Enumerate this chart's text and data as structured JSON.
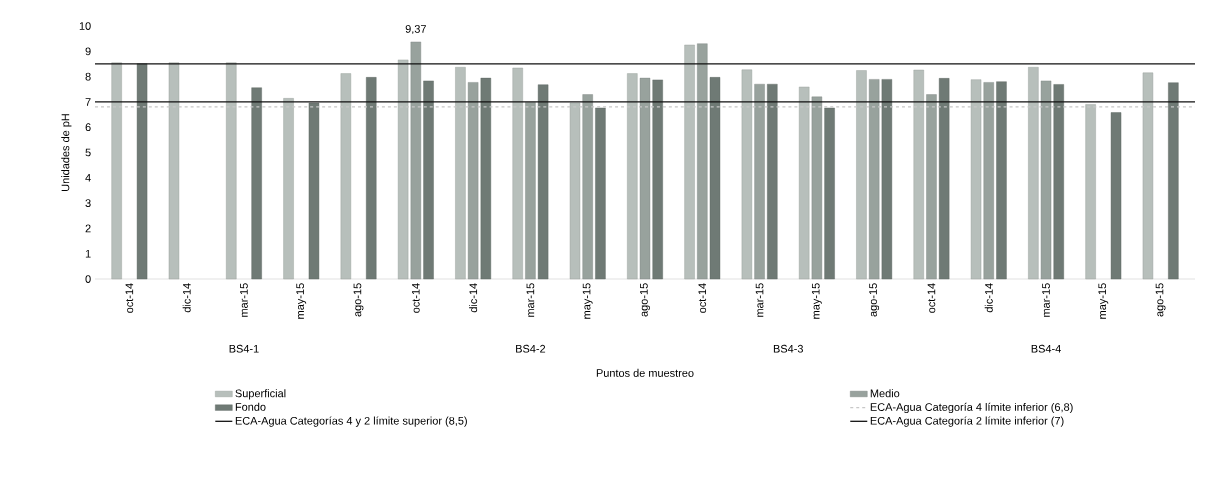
{
  "chart_data": {
    "type": "bar",
    "xlabel": "Puntos de muestreo",
    "ylabel": "Unidades de pH",
    "categories": [
      "oct-14",
      "dic-14",
      "mar-15",
      "may-15",
      "ago-15",
      "oct-14",
      "dic-14",
      "mar-15",
      "may-15",
      "ago-15",
      "oct-14",
      "mar-15",
      "may-15",
      "ago-15",
      "oct-14",
      "dic-14",
      "mar-15",
      "may-15",
      "ago-15"
    ],
    "series": [
      {
        "name": "Superficial",
        "color": "#b7bfbb",
        "values": [
          8.55,
          8.55,
          8.55,
          7.14,
          8.12,
          8.66,
          8.37,
          8.34,
          6.96,
          8.12,
          9.25,
          8.27,
          7.59,
          8.24,
          8.26,
          7.88,
          8.37,
          6.9,
          8.15
        ]
      },
      {
        "name": "Medio",
        "color": "#98a29d",
        "values": [
          null,
          null,
          null,
          null,
          null,
          9.37,
          7.77,
          6.98,
          7.29,
          7.94,
          9.3,
          7.7,
          7.2,
          7.89,
          7.29,
          7.77,
          7.83,
          null,
          null
        ],
        "value_labels": [
          null,
          null,
          null,
          null,
          null,
          "9,37",
          null,
          null,
          null,
          null,
          null,
          null,
          null,
          null,
          null,
          null,
          null,
          null,
          null
        ]
      },
      {
        "name": "Fondo",
        "color": "#6f7a75",
        "values": [
          8.51,
          null,
          7.56,
          6.96,
          7.97,
          7.83,
          7.94,
          7.68,
          6.76,
          7.87,
          7.97,
          7.7,
          6.76,
          7.89,
          7.93,
          7.8,
          7.69,
          6.58,
          7.76
        ]
      }
    ],
    "ref_lines": [
      {
        "axis": "y",
        "value": 6.8,
        "label": "ECA-Agua Categoría 4 límite inferior (6,8)",
        "color": "#c8c8c8",
        "line_style": "dashed"
      },
      {
        "axis": "y",
        "value": 8.5,
        "label": "ECA-Agua Categorías 4 y 2 límite superior (8,5)",
        "color": "#111111",
        "line_style": "solid"
      },
      {
        "axis": "y",
        "value": 7,
        "label": "ECA-Agua Categoría 2 límite inferior (7)",
        "color": "#111111",
        "line_style": "solid"
      }
    ],
    "annotations": [
      "BS4-1",
      "BS4-2",
      "BS4-3",
      "BS4-4"
    ],
    "ylim": [
      0,
      10
    ],
    "yticks": [
      0,
      1,
      2,
      3,
      4,
      5,
      6,
      7,
      8,
      9,
      10
    ],
    "legend": "bottom"
  }
}
